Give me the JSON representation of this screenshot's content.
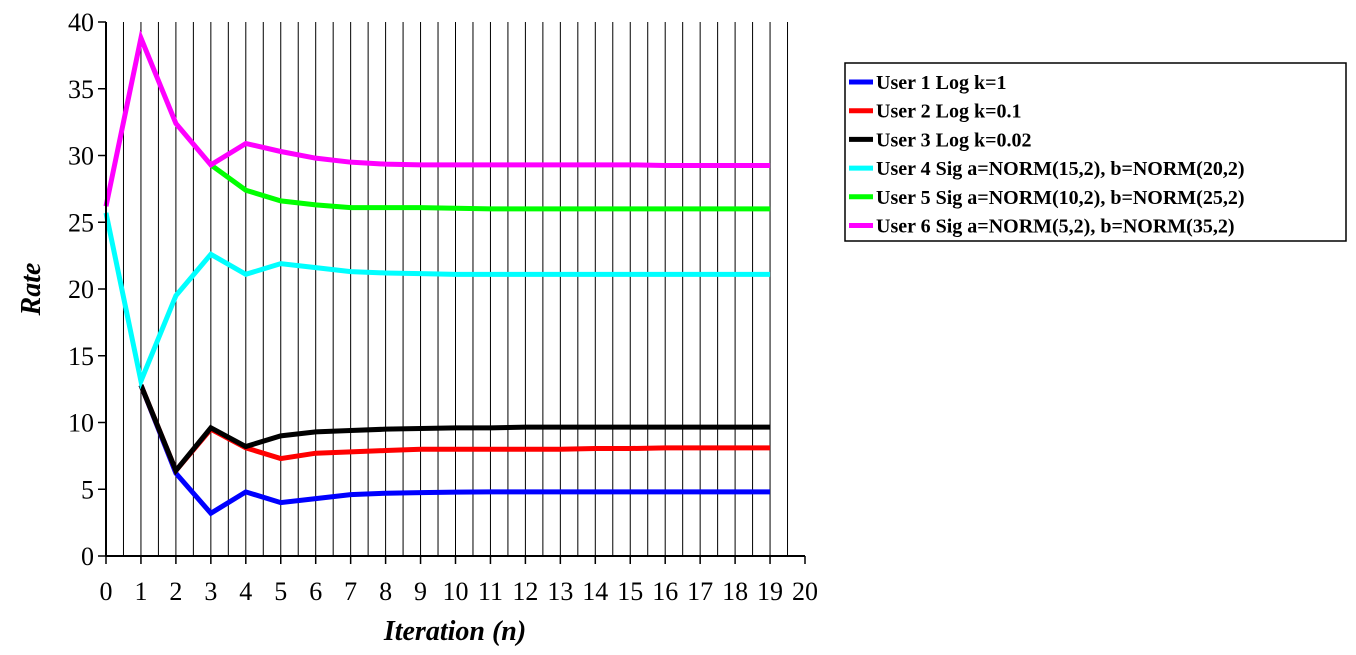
{
  "chart_data": {
    "type": "line",
    "title": "",
    "xlabel": "Iteration (n)",
    "ylabel": "Rate",
    "xlim": [
      0,
      20
    ],
    "ylim": [
      0,
      40
    ],
    "xticks": [
      0,
      1,
      2,
      3,
      4,
      5,
      6,
      7,
      8,
      9,
      10,
      11,
      12,
      13,
      14,
      15,
      16,
      17,
      18,
      19,
      20
    ],
    "yticks": [
      0,
      5,
      10,
      15,
      20,
      25,
      30,
      35,
      40
    ],
    "grid": "vertical",
    "legend_position": "top-right",
    "series": [
      {
        "name": "User 1 Log k=1",
        "color": "#0000ff",
        "x": [
          1,
          2,
          3,
          4,
          5,
          6,
          7,
          8,
          9,
          10,
          11,
          12,
          13,
          14,
          15,
          16,
          17,
          18,
          19
        ],
        "y": [
          12.8,
          6.2,
          3.2,
          4.8,
          4.0,
          4.3,
          4.6,
          4.7,
          4.75,
          4.78,
          4.8,
          4.8,
          4.8,
          4.8,
          4.8,
          4.8,
          4.8,
          4.8,
          4.8
        ]
      },
      {
        "name": "User 2 Log k=0.1",
        "color": "#ff0000",
        "x": [
          1,
          2,
          3,
          4,
          5,
          6,
          7,
          8,
          9,
          10,
          11,
          12,
          13,
          14,
          15,
          16,
          17,
          18,
          19
        ],
        "y": [
          12.8,
          6.4,
          9.5,
          8.1,
          7.3,
          7.7,
          7.8,
          7.9,
          8.0,
          8.0,
          8.0,
          8.0,
          8.0,
          8.05,
          8.05,
          8.1,
          8.1,
          8.1,
          8.1
        ]
      },
      {
        "name": "User 3 Log k=0.02",
        "color": "#000000",
        "x": [
          1,
          2,
          3,
          4,
          5,
          6,
          7,
          8,
          9,
          10,
          11,
          12,
          13,
          14,
          15,
          16,
          17,
          18,
          19
        ],
        "y": [
          12.8,
          6.4,
          9.6,
          8.2,
          9.0,
          9.3,
          9.4,
          9.5,
          9.55,
          9.6,
          9.6,
          9.65,
          9.65,
          9.65,
          9.65,
          9.65,
          9.65,
          9.65,
          9.65
        ]
      },
      {
        "name": "User 4 Sig a=NORM(15,2), b=NORM(20,2)",
        "color": "#00ffff",
        "x": [
          0,
          1,
          2,
          3,
          4,
          5,
          6,
          7,
          8,
          9,
          10,
          11,
          12,
          13,
          14,
          15,
          16,
          17,
          18,
          19
        ],
        "y": [
          25.7,
          13.1,
          19.5,
          22.6,
          21.1,
          21.9,
          21.6,
          21.3,
          21.2,
          21.15,
          21.1,
          21.1,
          21.1,
          21.1,
          21.1,
          21.1,
          21.1,
          21.1,
          21.1,
          21.1
        ]
      },
      {
        "name": "User 5 Sig a=NORM(10,2), b=NORM(25,2)",
        "color": "#00ff00",
        "x": [
          3,
          4,
          5,
          6,
          7,
          8,
          9,
          10,
          11,
          12,
          13,
          14,
          15,
          16,
          17,
          18,
          19
        ],
        "y": [
          29.3,
          27.4,
          26.6,
          26.3,
          26.1,
          26.1,
          26.1,
          26.05,
          26.0,
          26.0,
          26.0,
          26.0,
          26.0,
          26.0,
          26.0,
          26.0,
          26.0
        ]
      },
      {
        "name": "User 6 Sig a=NORM(5,2), b=NORM(35,2)",
        "color": "#ff00ff",
        "x": [
          0,
          1,
          2,
          3,
          4,
          5,
          6,
          7,
          8,
          9,
          10,
          11,
          12,
          13,
          14,
          15,
          16,
          17,
          18,
          19
        ],
        "y": [
          26.2,
          38.8,
          32.4,
          29.3,
          30.9,
          30.3,
          29.8,
          29.5,
          29.35,
          29.3,
          29.3,
          29.3,
          29.3,
          29.3,
          29.3,
          29.3,
          29.25,
          29.25,
          29.25,
          29.25
        ]
      }
    ]
  }
}
